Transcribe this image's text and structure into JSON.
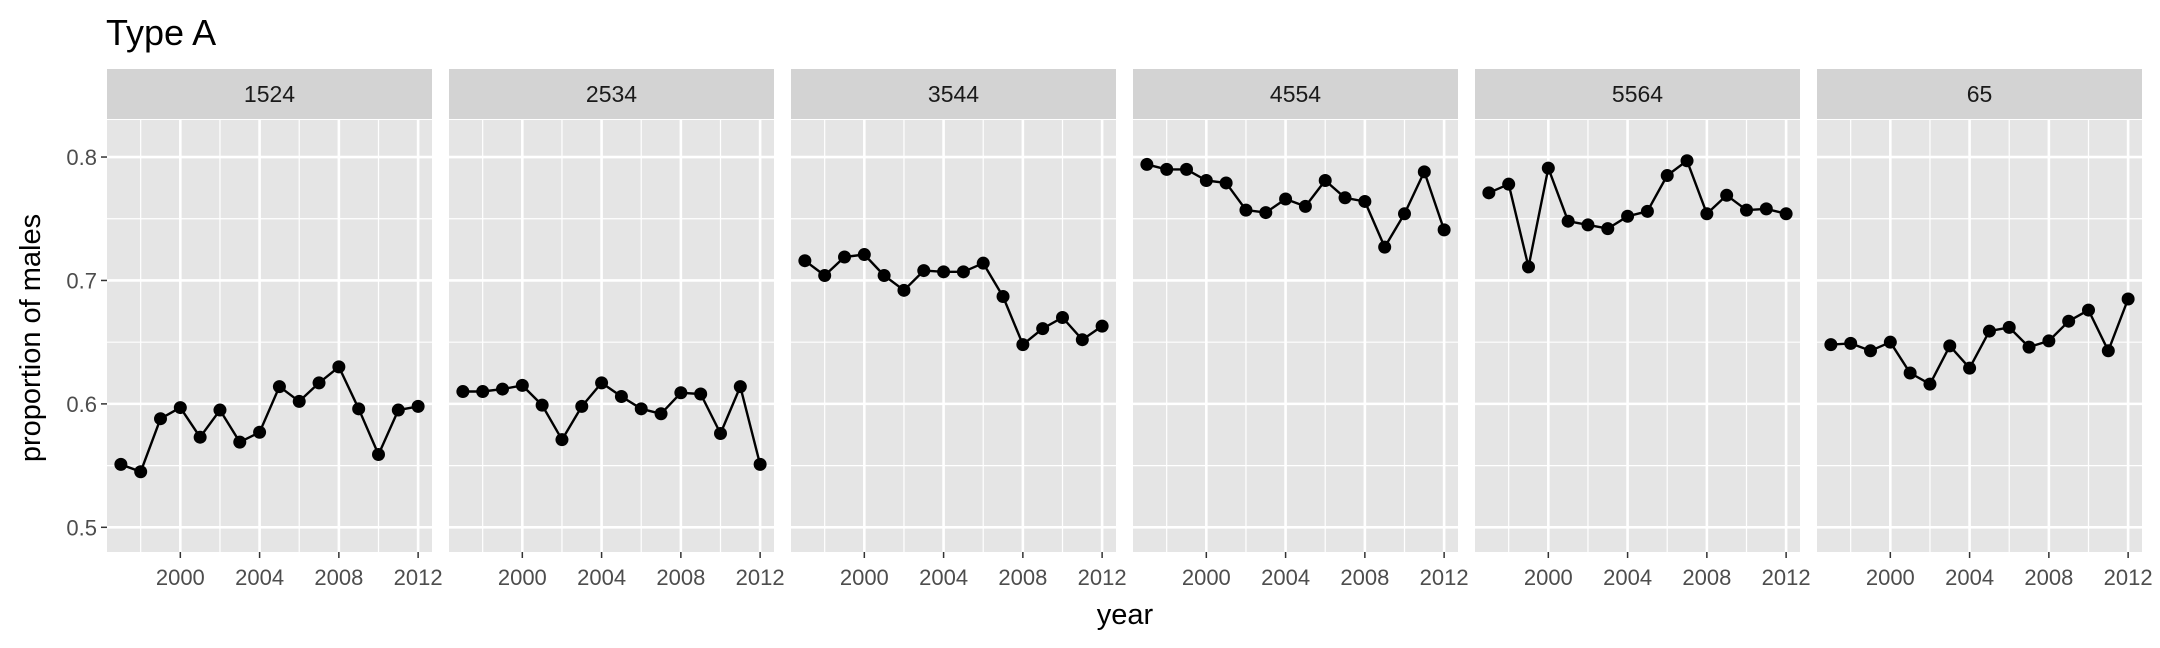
{
  "chart_data": {
    "type": "line",
    "title": "Type A",
    "xlabel": "year",
    "ylabel": "proportion of males",
    "ylim": [
      0.48,
      0.83
    ],
    "xlim": [
      1996.3,
      2012.7
    ],
    "yticks": [
      0.5,
      0.6,
      0.7,
      0.8
    ],
    "ytick_labels": [
      "0.5",
      "0.6",
      "0.7",
      "0.8"
    ],
    "xticks": [
      2000,
      2004,
      2008,
      2012
    ],
    "xtick_labels": [
      "2000",
      "2004",
      "2008",
      "2012"
    ],
    "grid": true,
    "legend": "none",
    "x": [
      1997,
      1998,
      1999,
      2000,
      2001,
      2002,
      2003,
      2004,
      2005,
      2006,
      2007,
      2008,
      2009,
      2010,
      2011,
      2012
    ],
    "facets": [
      {
        "name": "1524",
        "values": [
          0.551,
          0.545,
          0.588,
          0.597,
          0.573,
          0.595,
          0.569,
          0.577,
          0.614,
          0.602,
          0.617,
          0.63,
          0.596,
          0.559,
          0.595,
          0.598
        ]
      },
      {
        "name": "2534",
        "values": [
          0.61,
          0.61,
          0.612,
          0.615,
          0.599,
          0.571,
          0.598,
          0.617,
          0.606,
          0.596,
          0.592,
          0.609,
          0.608,
          0.576,
          0.614,
          0.551
        ]
      },
      {
        "name": "3544",
        "values": [
          0.716,
          0.704,
          0.719,
          0.721,
          0.704,
          0.692,
          0.708,
          0.707,
          0.707,
          0.714,
          0.687,
          0.648,
          0.661,
          0.67,
          0.652,
          0.663
        ]
      },
      {
        "name": "4554",
        "values": [
          0.794,
          0.79,
          0.79,
          0.781,
          0.779,
          0.757,
          0.755,
          0.766,
          0.76,
          0.781,
          0.767,
          0.764,
          0.727,
          0.754,
          0.788,
          0.741
        ]
      },
      {
        "name": "5564",
        "values": [
          0.771,
          0.778,
          0.711,
          0.791,
          0.748,
          0.745,
          0.742,
          0.752,
          0.756,
          0.785,
          0.797,
          0.754,
          0.769,
          0.757,
          0.758,
          0.754
        ]
      },
      {
        "name": "65",
        "values": [
          0.648,
          0.649,
          0.643,
          0.65,
          0.625,
          0.616,
          0.647,
          0.629,
          0.659,
          0.662,
          0.646,
          0.651,
          0.667,
          0.676,
          0.643,
          0.685
        ]
      }
    ]
  },
  "colors": {
    "panel_background": "#e5e5e5",
    "strip_background": "#d3d3d3",
    "grid": "#ffffff",
    "line": "#000000",
    "point": "#000000",
    "tick": "#333333"
  }
}
